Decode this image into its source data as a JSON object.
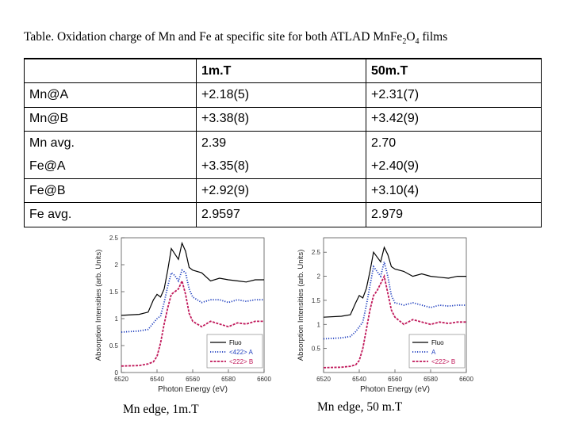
{
  "caption": {
    "prefix": "Table. Oxidation charge of Mn and Fe at specific site for both ATLAD Mn",
    "fe": "Fe",
    "sub": "2",
    "o": "O",
    "sub2": "4",
    "suffix": " films"
  },
  "table": {
    "headers": [
      "",
      "1m.T",
      "50m.T"
    ],
    "rows": [
      {
        "label": "Mn@A",
        "v1": "+2.18(5)",
        "v2": "+2.31(7)"
      },
      {
        "label": "Mn@B",
        "v1": "+3.38(8)",
        "v2": "+3.42(9)"
      },
      {
        "label": "Mn avg.",
        "v1": "2.39",
        "v2": "2.70"
      },
      {
        "label": "Fe@A",
        "v1": "+3.35(8)",
        "v2": "+2.40(9)"
      },
      {
        "label": "Fe@B",
        "v1": "+2.92(9)",
        "v2": "+3.10(4)"
      },
      {
        "label": "Fe avg.",
        "v1": "2.9597",
        "v2": "2.979"
      }
    ]
  },
  "chart_data": [
    {
      "type": "line",
      "xlabel": "Photon Energy (eV)",
      "ylabel": "Absorption Intensities (arb. Units)",
      "xlim": [
        6520,
        6600
      ],
      "ylim": [
        0,
        2.5
      ],
      "xticks": [
        "6520",
        "6540",
        "6560",
        "6580",
        "6600"
      ],
      "yticks": [
        "0",
        "0.5",
        "1",
        "1.5",
        "2",
        "2.5"
      ],
      "legend": "bottom-right",
      "caption": "Mn edge, 1m.T",
      "series": [
        {
          "name": "Fluo",
          "color": "#000000",
          "style": "solid",
          "x": [
            6520,
            6530,
            6535,
            6538,
            6540,
            6542,
            6544,
            6546,
            6548,
            6550,
            6552,
            6554,
            6556,
            6558,
            6560,
            6565,
            6570,
            6575,
            6580,
            6585,
            6590,
            6595,
            6600
          ],
          "y": [
            1.06,
            1.08,
            1.12,
            1.35,
            1.45,
            1.4,
            1.55,
            1.9,
            2.3,
            2.2,
            2.1,
            2.4,
            2.25,
            1.95,
            1.9,
            1.85,
            1.7,
            1.75,
            1.72,
            1.7,
            1.68,
            1.72,
            1.72
          ]
        },
        {
          "name": "<422> A",
          "color": "#1f3fbf",
          "style": "dotted",
          "x": [
            6520,
            6530,
            6535,
            6538,
            6540,
            6542,
            6544,
            6546,
            6548,
            6550,
            6552,
            6554,
            6556,
            6558,
            6560,
            6565,
            6570,
            6575,
            6580,
            6585,
            6590,
            6595,
            6600
          ],
          "y": [
            0.75,
            0.77,
            0.8,
            0.92,
            1.0,
            1.05,
            1.3,
            1.6,
            1.85,
            1.8,
            1.7,
            1.9,
            1.85,
            1.55,
            1.4,
            1.3,
            1.35,
            1.35,
            1.3,
            1.35,
            1.32,
            1.35,
            1.35
          ]
        },
        {
          "name": "<222> B",
          "color": "#c0185a",
          "style": "dashed",
          "x": [
            6520,
            6530,
            6535,
            6538,
            6540,
            6542,
            6544,
            6546,
            6548,
            6550,
            6552,
            6554,
            6556,
            6558,
            6560,
            6565,
            6570,
            6575,
            6580,
            6585,
            6590,
            6595,
            6600
          ],
          "y": [
            0.12,
            0.13,
            0.16,
            0.2,
            0.3,
            0.55,
            0.9,
            1.2,
            1.45,
            1.5,
            1.55,
            1.7,
            1.45,
            1.1,
            0.95,
            0.85,
            0.95,
            0.9,
            0.85,
            0.92,
            0.9,
            0.95,
            0.95
          ]
        }
      ]
    },
    {
      "type": "line",
      "xlabel": "Photon Energy (eV)",
      "ylabel": "Absorption Intensities (arb. Units)",
      "xlim": [
        6520,
        6600
      ],
      "ylim": [
        0,
        2.8
      ],
      "xticks": [
        "6520",
        "6540",
        "6560",
        "6580",
        "6600"
      ],
      "yticks": [
        "0.5",
        "1",
        "1.5",
        "2",
        "2.5"
      ],
      "legend": "bottom-right",
      "caption": "Mn edge, 50 m.T",
      "series": [
        {
          "name": "Fluo",
          "color": "#000000",
          "style": "solid",
          "x": [
            6520,
            6530,
            6535,
            6538,
            6540,
            6542,
            6544,
            6546,
            6548,
            6550,
            6552,
            6554,
            6556,
            6558,
            6560,
            6565,
            6570,
            6575,
            6580,
            6585,
            6590,
            6595,
            6600
          ],
          "y": [
            1.15,
            1.17,
            1.2,
            1.45,
            1.6,
            1.55,
            1.75,
            2.1,
            2.5,
            2.4,
            2.3,
            2.6,
            2.45,
            2.2,
            2.15,
            2.1,
            2.0,
            2.05,
            2.0,
            1.98,
            1.96,
            2.0,
            2.0
          ]
        },
        {
          "name": "A",
          "color": "#1f3fbf",
          "style": "dotted",
          "x": [
            6520,
            6530,
            6535,
            6538,
            6540,
            6542,
            6544,
            6546,
            6548,
            6550,
            6552,
            6554,
            6556,
            6558,
            6560,
            6565,
            6570,
            6575,
            6580,
            6585,
            6590,
            6595,
            6600
          ],
          "y": [
            0.7,
            0.72,
            0.75,
            0.85,
            0.95,
            1.05,
            1.4,
            1.8,
            2.2,
            2.1,
            2.0,
            2.3,
            2.0,
            1.6,
            1.45,
            1.4,
            1.45,
            1.4,
            1.35,
            1.4,
            1.38,
            1.4,
            1.4
          ]
        },
        {
          "name": "<222> B",
          "color": "#c0185a",
          "style": "dashed",
          "x": [
            6520,
            6530,
            6535,
            6538,
            6540,
            6542,
            6544,
            6546,
            6548,
            6550,
            6552,
            6554,
            6556,
            6558,
            6560,
            6565,
            6570,
            6575,
            6580,
            6585,
            6590,
            6595,
            6600
          ],
          "y": [
            0.1,
            0.11,
            0.13,
            0.16,
            0.25,
            0.5,
            0.9,
            1.3,
            1.6,
            1.7,
            1.85,
            2.0,
            1.65,
            1.3,
            1.15,
            1.0,
            1.1,
            1.05,
            1.0,
            1.05,
            1.02,
            1.05,
            1.05
          ]
        }
      ]
    }
  ]
}
